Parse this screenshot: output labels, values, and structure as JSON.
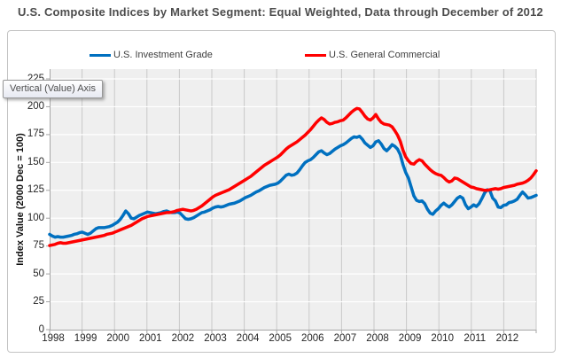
{
  "tooltip": {
    "text": "Vertical (Value) Axis"
  },
  "colors": {
    "panel_fill": "#efefef",
    "h_gridline": "#ffffff",
    "v_gridline": "#c9c9c9",
    "axis_line": "#a6a6a6",
    "title_text": "#4c4c4c",
    "tick_text": "#262626"
  },
  "chart_data": {
    "type": "line",
    "title": "U.S. Composite Indices by Market Segment: Equal Weighted, Data through December of 2012",
    "ylabel": "Index Value (2000 Dec = 100)",
    "xlabel": "",
    "ylim": [
      0,
      225
    ],
    "yticks": [
      0,
      25,
      50,
      75,
      100,
      125,
      150,
      175,
      200,
      225
    ],
    "x_year_labels": [
      "1998",
      "1999",
      "2000",
      "2001",
      "2002",
      "2003",
      "2004",
      "2005",
      "2006",
      "2007",
      "2008",
      "2009",
      "2010",
      "2011",
      "2012"
    ],
    "x_unit": "monthly, Jan 1998 - Dec 2012",
    "grid": true,
    "legend_position": "top",
    "series": [
      {
        "name": "U.S. Investment Grade",
        "color": "#0070C0",
        "values": [
          85.5,
          84,
          83,
          83.5,
          83,
          83,
          83.5,
          84,
          84.5,
          85.5,
          86,
          87,
          87.5,
          86.5,
          85.5,
          86.5,
          88.5,
          90.5,
          91.5,
          91.5,
          91.5,
          92,
          92.5,
          93.5,
          95,
          96.5,
          99,
          102.5,
          106.5,
          104,
          100,
          99.5,
          101,
          102.5,
          103.5,
          104.5,
          105.5,
          105,
          104.5,
          104,
          104.5,
          105,
          106,
          106.5,
          105.5,
          105,
          105,
          105.5,
          104.5,
          102,
          99.5,
          99,
          99.5,
          100.5,
          102,
          103.5,
          105,
          105.5,
          106.5,
          107.5,
          109,
          110,
          110.5,
          110,
          110.5,
          111.5,
          112.5,
          113,
          113.5,
          114.5,
          115.5,
          117,
          118.5,
          119.5,
          120.5,
          122,
          123.5,
          124.5,
          126,
          127.5,
          128.5,
          129.5,
          130,
          130.5,
          131.5,
          133.5,
          136,
          138.5,
          139.5,
          138.5,
          139,
          140.5,
          143.5,
          147,
          150,
          151.5,
          152.5,
          154.5,
          157,
          159.5,
          160.5,
          158.5,
          157,
          158,
          160,
          162,
          163.5,
          165,
          166,
          167.5,
          169.5,
          171.5,
          173,
          172.5,
          173.5,
          171,
          167.5,
          165.5,
          163.5,
          165,
          168.5,
          169.5,
          166.5,
          162.5,
          160.5,
          163,
          166,
          164.5,
          162,
          157,
          148,
          141,
          136,
          128,
          120,
          116,
          115,
          115.5,
          113,
          108,
          104.5,
          103.5,
          106.5,
          108.5,
          111.5,
          113.5,
          111.5,
          110,
          112,
          115,
          118,
          119.5,
          118,
          112,
          108.5,
          110,
          112,
          110.5,
          113,
          117.5,
          122.5,
          125.5,
          124.5,
          118,
          115.5,
          110,
          109.5,
          111.5,
          112,
          114,
          114.5,
          115.5,
          117,
          120.5,
          123.5,
          121,
          118,
          118.5,
          119.5,
          120.5
        ]
      },
      {
        "name": "U.S. General Commercial",
        "color": "#FF0000",
        "values": [
          75.5,
          76,
          76.5,
          77.5,
          78,
          77.5,
          77.5,
          78,
          78.5,
          79,
          79.5,
          80,
          80.5,
          81,
          81.5,
          82,
          82.5,
          83,
          83.5,
          84,
          84.5,
          85.5,
          86,
          86.5,
          87.5,
          88.5,
          89.5,
          90.5,
          91.5,
          92.5,
          93.5,
          95,
          96.5,
          98,
          99.5,
          100.5,
          101.5,
          102,
          102.5,
          103,
          103.5,
          104,
          104.5,
          105,
          105,
          105.5,
          106,
          107,
          107.5,
          108,
          107.5,
          107,
          106.5,
          107,
          108,
          109.5,
          111,
          113,
          115,
          117,
          119,
          120.5,
          121.5,
          122.5,
          123.5,
          124.5,
          125.5,
          127,
          128.5,
          130,
          131.5,
          133,
          134.5,
          136,
          137.5,
          139.5,
          141.5,
          143.5,
          145.5,
          147.5,
          149,
          150.5,
          152,
          153.5,
          155,
          157,
          159.5,
          162,
          164,
          165.5,
          167,
          168.5,
          170.5,
          172.5,
          174.5,
          177,
          179.5,
          182.5,
          185.5,
          188,
          190,
          188.5,
          186,
          184.5,
          185,
          186,
          186.5,
          187.5,
          188,
          190,
          192.5,
          195,
          197,
          198.5,
          198,
          195,
          191.5,
          189,
          188,
          190,
          193,
          189,
          186,
          184.5,
          184,
          183.5,
          182,
          178.5,
          174.5,
          169,
          161,
          155,
          151.5,
          149,
          148.5,
          151,
          152.5,
          151.5,
          148.5,
          146,
          143.5,
          141.5,
          140,
          139,
          138.5,
          136.5,
          134,
          132.5,
          133.5,
          136,
          135.5,
          134,
          132.5,
          131,
          129.5,
          128,
          127.5,
          126.5,
          126,
          125.5,
          125,
          125,
          125.5,
          126,
          126.5,
          126,
          126.5,
          127.5,
          128,
          128.5,
          129,
          129.5,
          130.5,
          131,
          131.5,
          132.5,
          134,
          136,
          139,
          142.5
        ]
      }
    ]
  }
}
